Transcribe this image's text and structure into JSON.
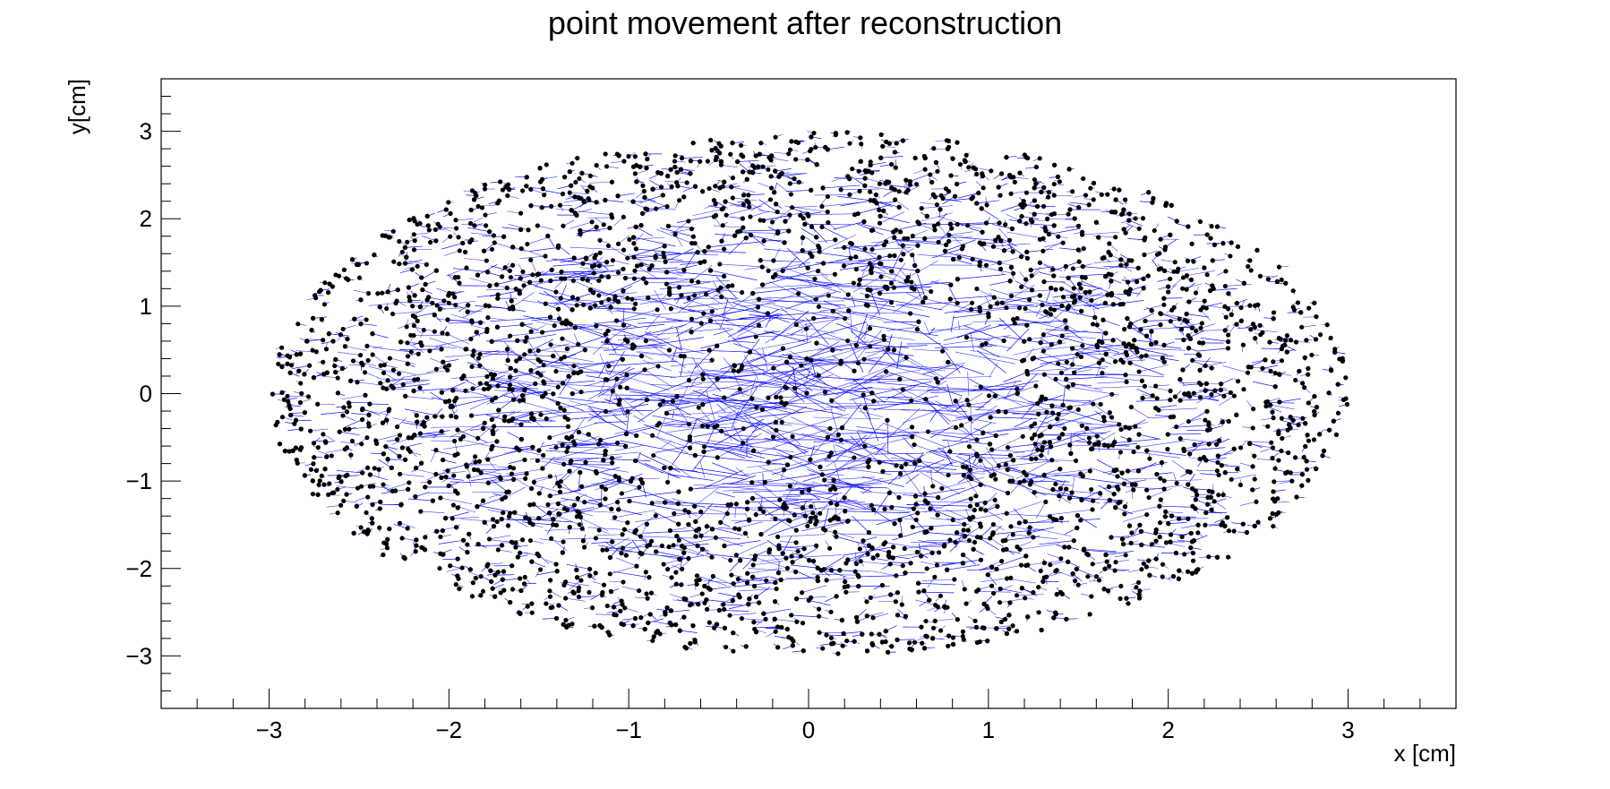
{
  "chart_data": {
    "type": "scatter",
    "title": "point movement after reconstruction",
    "xlabel": "x [cm]",
    "ylabel": "y[cm]",
    "xlim": [
      -3.6,
      3.6
    ],
    "ylim": [
      -3.6,
      3.6
    ],
    "x_ticks": [
      -3,
      -2,
      -1,
      0,
      1,
      2,
      3
    ],
    "y_ticks": [
      -3,
      -2,
      -1,
      0,
      1,
      2,
      3
    ],
    "x_tick_labels": [
      "−3",
      "−2",
      "−1",
      "0",
      "1",
      "2",
      "3"
    ],
    "y_tick_labels": [
      "−3",
      "−2",
      "−1",
      "0",
      "1",
      "2",
      "3"
    ],
    "grid": false,
    "region": {
      "shape": "ellipse",
      "center": [
        0,
        0
      ],
      "x_semi_axis": 3.0,
      "y_semi_axis": 3.0
    },
    "series": [
      {
        "values": "displacement vectors (start → end) for each reconstructed point; dense, longest near the centre"
      },
      {
        "values": "reconstructed point positions filling the disc uniformly"
      }
    ],
    "colors": {
      "points": "#000000",
      "vectors": "#0000ff",
      "frame": "#000000",
      "background": "#ffffff"
    }
  }
}
